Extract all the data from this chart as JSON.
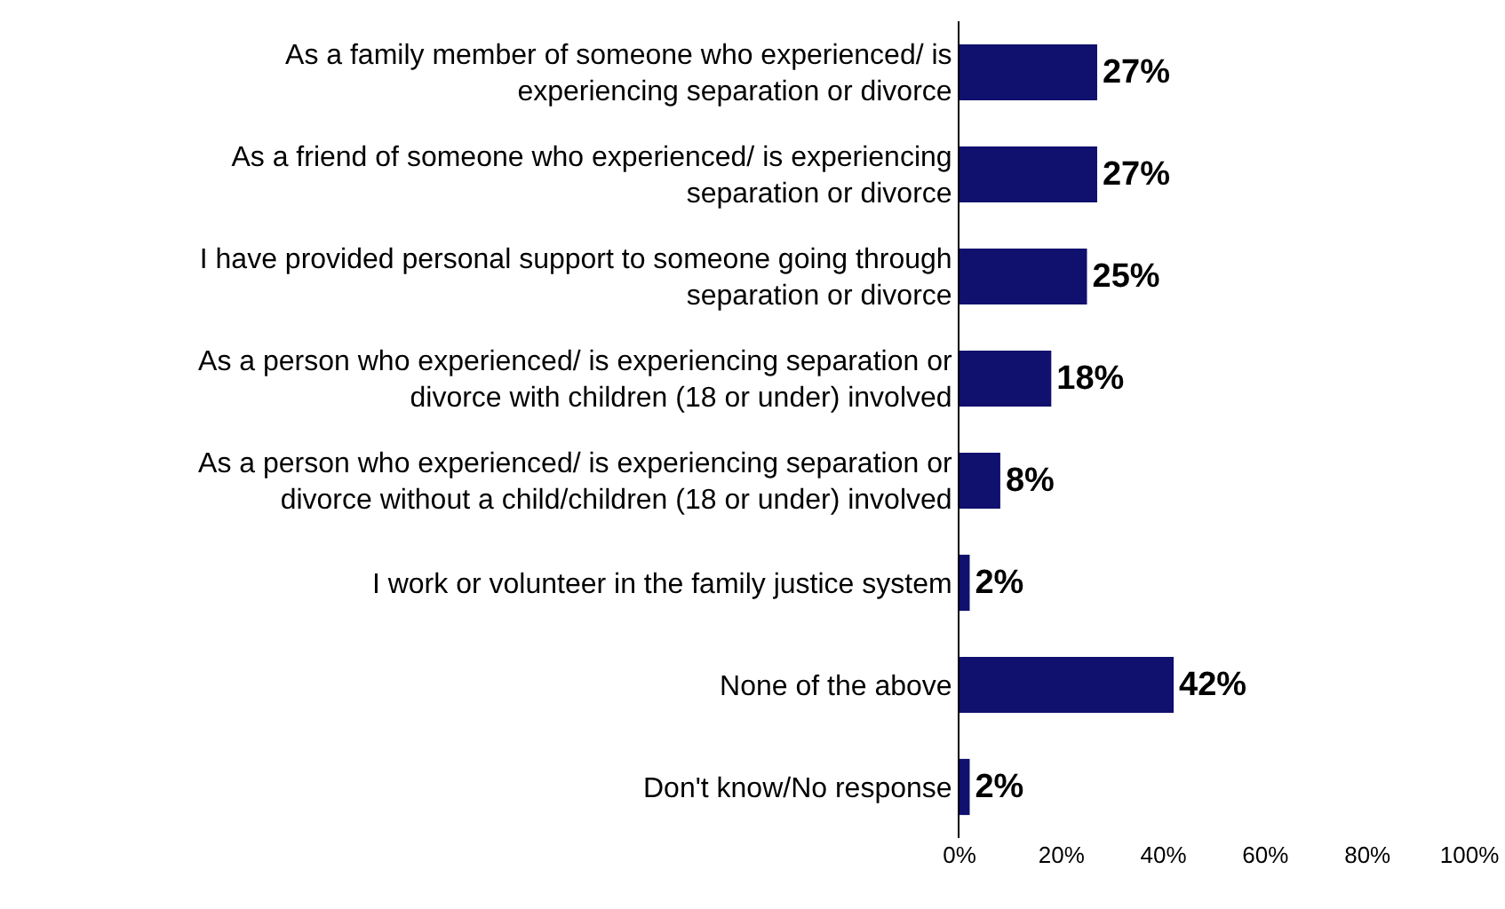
{
  "chart_data": {
    "type": "bar",
    "orientation": "horizontal",
    "categories": [
      "As a family member of someone who experienced/ is experiencing separation or divorce",
      "As a friend of someone who experienced/ is experiencing separation or divorce",
      "I have provided personal support to someone going through separation or divorce",
      "As a person who experienced/ is experiencing separation or divorce with children (18 or under) involved",
      "As a person who experienced/ is experiencing separation or divorce without a child/children (18 or under) involved",
      "I work or volunteer in the family justice system",
      "None of the above",
      "Don't know/No response"
    ],
    "values": [
      27,
      27,
      25,
      18,
      8,
      2,
      42,
      2
    ],
    "value_labels": [
      "27%",
      "27%",
      "25%",
      "18%",
      "8%",
      "2%",
      "42%",
      "2%"
    ],
    "color": "#10106e",
    "xlim": [
      0,
      100
    ],
    "xticks": [
      {
        "value": 0,
        "label": "0%"
      },
      {
        "value": 20,
        "label": "20%"
      },
      {
        "value": 40,
        "label": "40%"
      },
      {
        "value": 60,
        "label": "60%"
      },
      {
        "value": 80,
        "label": "80%"
      },
      {
        "value": 100,
        "label": "100%"
      }
    ],
    "grid": false
  }
}
